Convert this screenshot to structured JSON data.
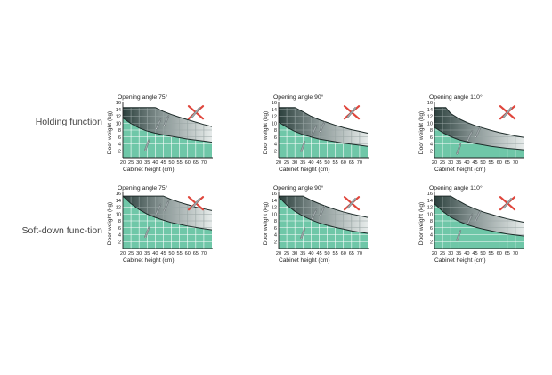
{
  "rows": [
    {
      "label": "Holding function"
    },
    {
      "label": "Soft-down func-tion"
    }
  ],
  "colors": {
    "green": "#6fc7a8",
    "dark": "#2b3f3c",
    "mid": "#8a9796",
    "light": "#e6ebea",
    "grid_on_green": "#ffffff",
    "grid_on_dark": "#9aa6a5",
    "axis": "#222222",
    "cross": "#e0463c",
    "device": "#9ea7a9"
  },
  "chart_data": [
    {
      "type": "area",
      "title": "Opening angle 75°",
      "xlabel": "Cabinet height (cm)",
      "ylabel": "Door weight (kg)",
      "xlim": [
        20,
        75
      ],
      "ylim": [
        0,
        16
      ],
      "xticks": [
        20,
        25,
        30,
        35,
        40,
        45,
        50,
        55,
        60,
        65,
        70
      ],
      "yticks": [
        2,
        4,
        6,
        8,
        10,
        12,
        14,
        16
      ],
      "grid": true,
      "series": [
        {
          "role": "upper",
          "x": [
            20,
            40,
            45,
            50,
            55,
            60,
            65,
            70,
            75
          ],
          "y": [
            14.5,
            14.5,
            13.4,
            12.5,
            11.7,
            11.0,
            10.3,
            9.6,
            9.0
          ]
        },
        {
          "role": "lower",
          "x": [
            20,
            25,
            30,
            35,
            40,
            45,
            50,
            55,
            60,
            65,
            70,
            75
          ],
          "y": [
            11.5,
            9.9,
            8.6,
            7.7,
            7.1,
            6.6,
            6.2,
            5.8,
            5.4,
            5.1,
            4.8,
            4.5
          ]
        }
      ]
    },
    {
      "type": "area",
      "title": "Opening angle 90°",
      "xlabel": "Cabinet height (cm)",
      "ylabel": "Door weight (kg)",
      "xlim": [
        20,
        75
      ],
      "ylim": [
        0,
        16
      ],
      "xticks": [
        20,
        25,
        30,
        35,
        40,
        45,
        50,
        55,
        60,
        65,
        70
      ],
      "yticks": [
        2,
        4,
        6,
        8,
        10,
        12,
        14,
        16
      ],
      "grid": true,
      "series": [
        {
          "role": "upper",
          "x": [
            20,
            30,
            35,
            40,
            45,
            50,
            55,
            60,
            65,
            70,
            75
          ],
          "y": [
            14.5,
            14.5,
            13.3,
            12.0,
            11.0,
            10.2,
            9.4,
            8.7,
            8.1,
            7.6,
            7.1
          ]
        },
        {
          "role": "lower",
          "x": [
            20,
            25,
            30,
            35,
            40,
            45,
            50,
            55,
            60,
            65,
            70,
            75
          ],
          "y": [
            10.3,
            8.8,
            7.6,
            6.7,
            6.0,
            5.4,
            5.0,
            4.6,
            4.2,
            3.9,
            3.6,
            3.3
          ]
        }
      ]
    },
    {
      "type": "area",
      "title": "Opening angle 110°",
      "xlabel": "Cabinet height (cm)",
      "ylabel": "Door weight (kg)",
      "xlim": [
        20,
        75
      ],
      "ylim": [
        0,
        16
      ],
      "xticks": [
        20,
        25,
        30,
        35,
        40,
        45,
        50,
        55,
        60,
        65,
        70
      ],
      "yticks": [
        2,
        4,
        6,
        8,
        10,
        12,
        14,
        16
      ],
      "grid": true,
      "series": [
        {
          "role": "upper",
          "x": [
            20,
            27,
            30,
            35,
            40,
            45,
            50,
            55,
            60,
            65,
            70,
            75
          ],
          "y": [
            14.5,
            14.5,
            12.8,
            11.3,
            10.2,
            9.3,
            8.6,
            7.9,
            7.3,
            6.8,
            6.3,
            5.9
          ]
        },
        {
          "role": "lower",
          "x": [
            20,
            25,
            30,
            35,
            40,
            45,
            50,
            55,
            60,
            65,
            70,
            75
          ],
          "y": [
            8.8,
            7.3,
            6.1,
            5.2,
            4.6,
            4.1,
            3.7,
            3.3,
            3.0,
            2.7,
            2.5,
            2.3
          ]
        }
      ]
    },
    {
      "type": "area",
      "title": "Opening angle 75°",
      "xlabel": "Cabinet height (cm)",
      "ylabel": "Door weight (kg)",
      "xlim": [
        20,
        75
      ],
      "ylim": [
        0,
        16
      ],
      "xticks": [
        20,
        25,
        30,
        35,
        40,
        45,
        50,
        55,
        60,
        65,
        70
      ],
      "yticks": [
        2,
        4,
        6,
        8,
        10,
        12,
        14,
        16
      ],
      "grid": true,
      "series": [
        {
          "role": "upper",
          "x": [
            20,
            45,
            50,
            55,
            60,
            65,
            70,
            75
          ],
          "y": [
            15.2,
            15.2,
            14.2,
            13.4,
            12.7,
            12.0,
            11.5,
            11.0
          ]
        },
        {
          "role": "lower",
          "x": [
            20,
            25,
            30,
            35,
            40,
            45,
            50,
            55,
            60,
            65,
            70,
            75
          ],
          "y": [
            15.2,
            13.0,
            11.3,
            10.0,
            9.0,
            8.2,
            7.5,
            7.0,
            6.5,
            6.1,
            5.7,
            5.4
          ]
        }
      ]
    },
    {
      "type": "area",
      "title": "Opening angle 90°",
      "xlabel": "Cabinet height (cm)",
      "ylabel": "Door weight (kg)",
      "xlim": [
        20,
        75
      ],
      "ylim": [
        0,
        16
      ],
      "xticks": [
        20,
        25,
        30,
        35,
        40,
        45,
        50,
        55,
        60,
        65,
        70
      ],
      "yticks": [
        2,
        4,
        6,
        8,
        10,
        12,
        14,
        16
      ],
      "grid": true,
      "series": [
        {
          "role": "upper",
          "x": [
            20,
            35,
            40,
            45,
            50,
            55,
            60,
            65,
            70,
            75
          ],
          "y": [
            15.2,
            15.2,
            14.0,
            13.0,
            12.1,
            11.3,
            10.6,
            10.0,
            9.5,
            9.0
          ]
        },
        {
          "role": "lower",
          "x": [
            20,
            25,
            30,
            35,
            40,
            45,
            50,
            55,
            60,
            65,
            70,
            75
          ],
          "y": [
            15.0,
            12.6,
            10.8,
            9.4,
            8.3,
            7.4,
            6.7,
            6.1,
            5.6,
            5.1,
            4.7,
            4.4
          ]
        }
      ]
    },
    {
      "type": "area",
      "title": "Opening angle 110°",
      "xlabel": "Cabinet height (cm)",
      "ylabel": "Door weight (kg)",
      "xlim": [
        20,
        75
      ],
      "ylim": [
        0,
        16
      ],
      "xticks": [
        20,
        25,
        30,
        35,
        40,
        45,
        50,
        55,
        60,
        65,
        70
      ],
      "yticks": [
        2,
        4,
        6,
        8,
        10,
        12,
        14,
        16
      ],
      "grid": true,
      "series": [
        {
          "role": "upper",
          "x": [
            20,
            30,
            35,
            40,
            45,
            50,
            55,
            60,
            65,
            70,
            75
          ],
          "y": [
            15.2,
            15.2,
            13.8,
            12.5,
            11.5,
            10.6,
            9.9,
            9.2,
            8.6,
            8.1,
            7.6
          ]
        },
        {
          "role": "lower",
          "x": [
            20,
            25,
            30,
            35,
            40,
            45,
            50,
            55,
            60,
            65,
            70,
            75
          ],
          "y": [
            13.0,
            10.8,
            9.1,
            7.9,
            6.9,
            6.2,
            5.6,
            5.1,
            4.6,
            4.2,
            3.9,
            3.6
          ]
        }
      ]
    }
  ]
}
